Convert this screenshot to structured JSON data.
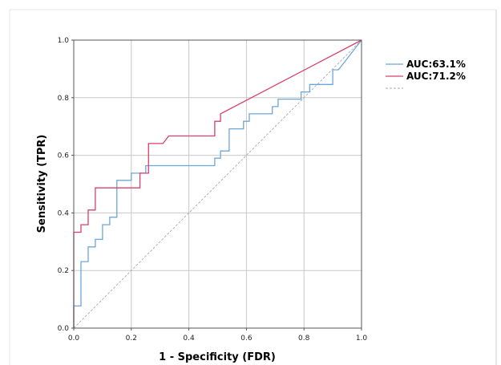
{
  "chart_data": {
    "type": "line",
    "xlabel": "1 - Specificity (FDR)",
    "ylabel": "Sensitivity (TPR)",
    "xlim": [
      0,
      1
    ],
    "ylim": [
      0,
      1
    ],
    "xticks": [
      "0.0",
      "0.2",
      "0.4",
      "0.6",
      "0.8",
      "1.0"
    ],
    "yticks": [
      "0.0",
      "0.2",
      "0.4",
      "0.6",
      "0.8",
      "1.0"
    ],
    "grid": true,
    "legend_position": "right",
    "series": [
      {
        "name": "AUC:63.1%",
        "color": "#6ea6d8",
        "style": "step",
        "points": [
          [
            0,
            0
          ],
          [
            0,
            0.077
          ],
          [
            0.025,
            0.077
          ],
          [
            0.025,
            0.231
          ],
          [
            0.05,
            0.231
          ],
          [
            0.05,
            0.282
          ],
          [
            0.075,
            0.282
          ],
          [
            0.075,
            0.308
          ],
          [
            0.1,
            0.308
          ],
          [
            0.1,
            0.359
          ],
          [
            0.125,
            0.359
          ],
          [
            0.125,
            0.385
          ],
          [
            0.15,
            0.385
          ],
          [
            0.15,
            0.513
          ],
          [
            0.2,
            0.513
          ],
          [
            0.2,
            0.538
          ],
          [
            0.25,
            0.538
          ],
          [
            0.25,
            0.564
          ],
          [
            0.49,
            0.564
          ],
          [
            0.49,
            0.59
          ],
          [
            0.51,
            0.59
          ],
          [
            0.51,
            0.615
          ],
          [
            0.54,
            0.615
          ],
          [
            0.54,
            0.692
          ],
          [
            0.59,
            0.692
          ],
          [
            0.59,
            0.718
          ],
          [
            0.61,
            0.718
          ],
          [
            0.61,
            0.744
          ],
          [
            0.69,
            0.744
          ],
          [
            0.69,
            0.769
          ],
          [
            0.71,
            0.769
          ],
          [
            0.71,
            0.795
          ],
          [
            0.79,
            0.795
          ],
          [
            0.79,
            0.82
          ],
          [
            0.82,
            0.82
          ],
          [
            0.82,
            0.846
          ],
          [
            0.9,
            0.846
          ],
          [
            0.9,
            0.897
          ],
          [
            0.92,
            0.897
          ],
          [
            1.0,
            1.0
          ]
        ]
      },
      {
        "name": "AUC:71.2%",
        "color": "#d6416b",
        "style": "step",
        "points": [
          [
            0,
            0
          ],
          [
            0,
            0.333
          ],
          [
            0.025,
            0.333
          ],
          [
            0.025,
            0.359
          ],
          [
            0.05,
            0.359
          ],
          [
            0.05,
            0.41
          ],
          [
            0.075,
            0.41
          ],
          [
            0.075,
            0.487
          ],
          [
            0.23,
            0.487
          ],
          [
            0.23,
            0.538
          ],
          [
            0.26,
            0.538
          ],
          [
            0.26,
            0.641
          ],
          [
            0.31,
            0.641
          ],
          [
            0.33,
            0.667
          ],
          [
            0.49,
            0.667
          ],
          [
            0.49,
            0.718
          ],
          [
            0.51,
            0.718
          ],
          [
            0.51,
            0.744
          ],
          [
            1.0,
            1.0
          ]
        ]
      },
      {
        "name": "",
        "color": "#aaaaaa",
        "style": "dashed",
        "points": [
          [
            0,
            0
          ],
          [
            1,
            1
          ]
        ]
      }
    ]
  }
}
